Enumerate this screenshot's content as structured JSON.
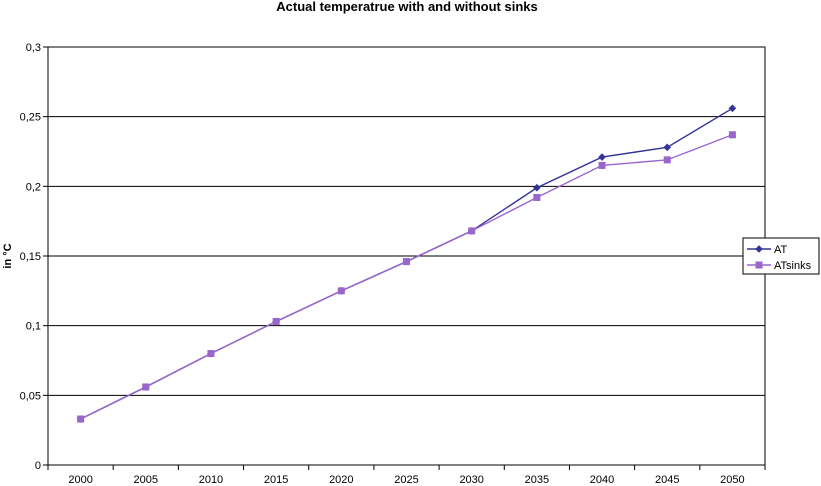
{
  "chart_data": {
    "type": "line",
    "title": "Actual temperatrue with and without sinks",
    "xlabel": "",
    "ylabel": "in °C",
    "categories": [
      "2000",
      "2005",
      "2010",
      "2015",
      "2020",
      "2025",
      "2030",
      "2035",
      "2040",
      "2045",
      "2050"
    ],
    "y_ticks": [
      "0",
      "0,05",
      "0,1",
      "0,15",
      "0,2",
      "0,25",
      "0,3"
    ],
    "ylim": [
      0,
      0.3
    ],
    "grid": "horizontal",
    "legend_position": "right",
    "series": [
      {
        "name": "AT",
        "marker": "diamond",
        "color": "#333399",
        "values": [
          0.033,
          0.056,
          0.08,
          0.103,
          0.125,
          0.146,
          0.168,
          0.199,
          0.221,
          0.228,
          0.256
        ]
      },
      {
        "name": "ATsinks",
        "marker": "square",
        "color": "#9966CC",
        "values": [
          0.033,
          0.056,
          0.08,
          0.103,
          0.125,
          0.146,
          0.168,
          0.192,
          0.215,
          0.219,
          0.237
        ]
      }
    ]
  }
}
